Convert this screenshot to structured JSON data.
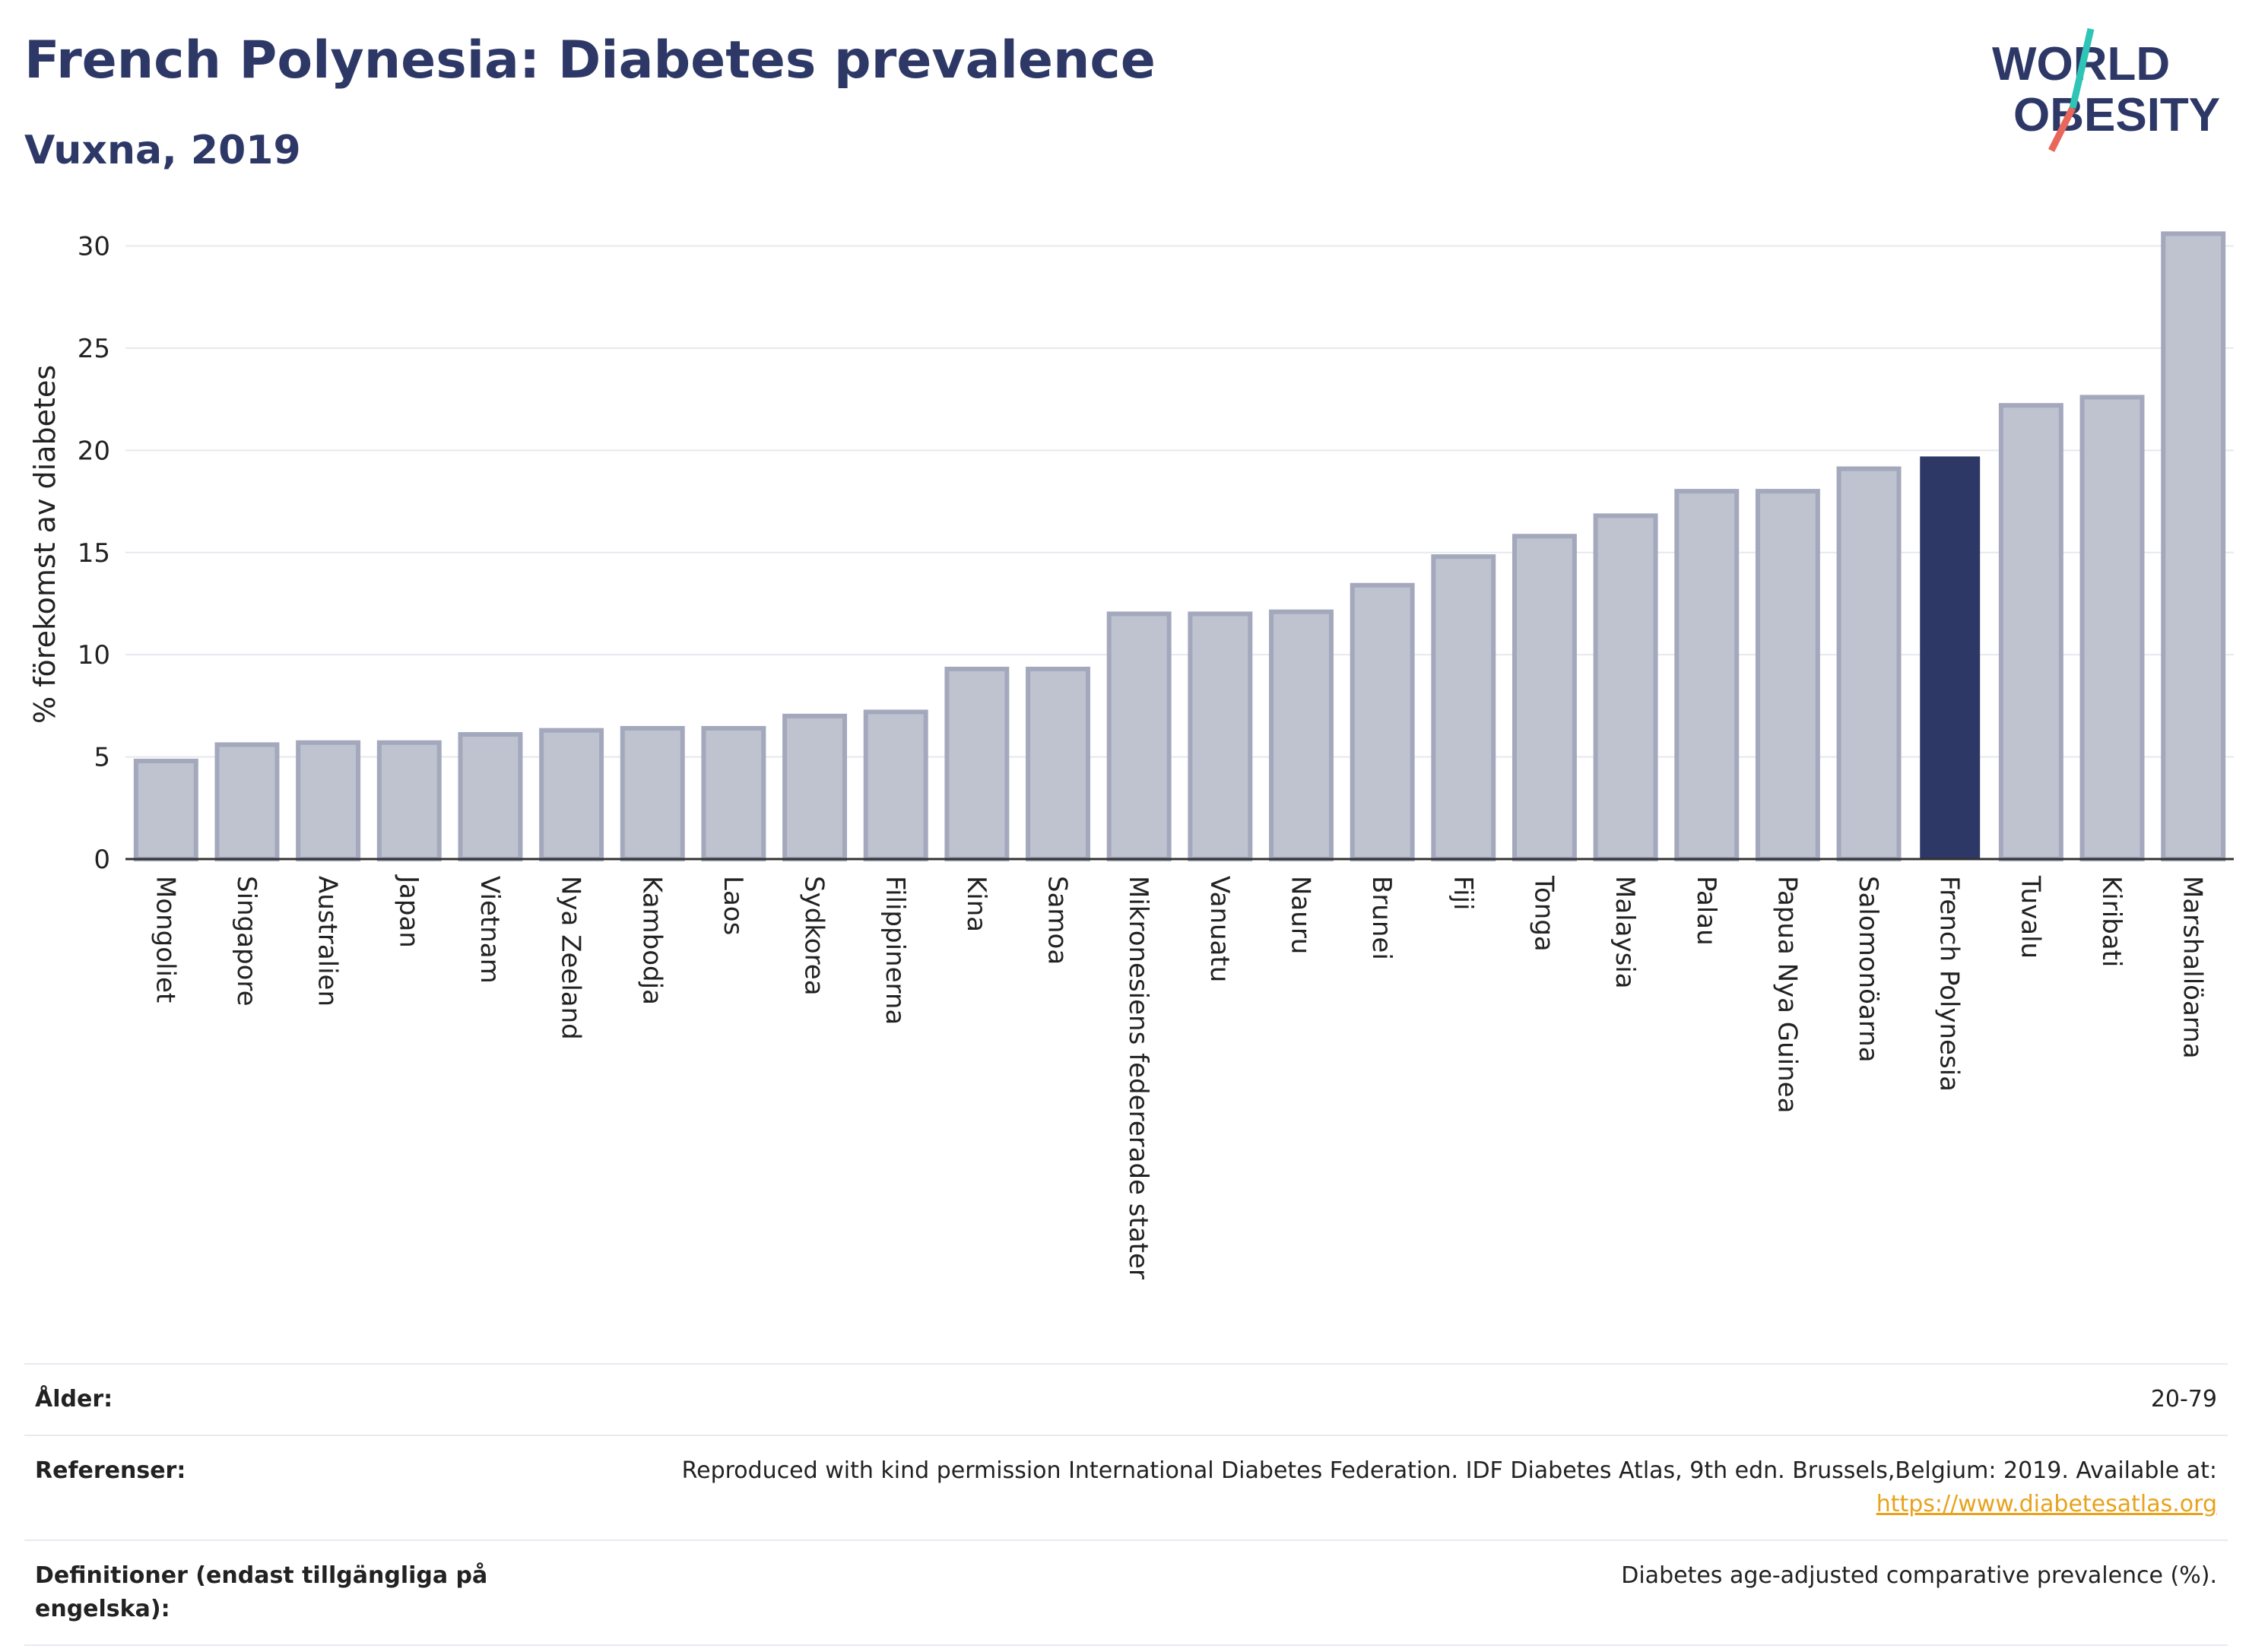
{
  "header": {
    "title": "French Polynesia: Diabetes prevalence",
    "subtitle": "Vuxna, 2019"
  },
  "logo": {
    "line1": "WORLD",
    "line2": "OBESITY",
    "accent_teal": "#2ec4b6",
    "accent_coral": "#e8665a",
    "text_color": "#2d3867"
  },
  "chart_data": {
    "type": "bar",
    "ylabel": "% förekomst av diabetes",
    "xlabel": "",
    "ylim": [
      0,
      30.8
    ],
    "yticks": [
      0,
      5,
      10,
      15,
      20,
      25,
      30
    ],
    "grid": true,
    "highlight": "French Polynesia",
    "colors": {
      "bar": "#bfc2cf",
      "bar_border": "#a3a8bc",
      "highlight": "#2d3867",
      "grid": "#e6e8ee",
      "axis": "#333333"
    },
    "categories": [
      "Mongoliet",
      "Singapore",
      "Australien",
      "Japan",
      "Vietnam",
      "Nya Zeeland",
      "Kambodja",
      "Laos",
      "Sydkorea",
      "Filippinerna",
      "Kina",
      "Samoa",
      "Mikronesiens federerade stater",
      "Vanuatu",
      "Nauru",
      "Brunei",
      "Fiji",
      "Tonga",
      "Malaysia",
      "Palau",
      "Papua Nya Guinea",
      "Salomonöarna",
      "French Polynesia",
      "Tuvalu",
      "Kiribati",
      "Marshallöarna"
    ],
    "values": [
      4.8,
      5.6,
      5.7,
      5.7,
      6.1,
      6.3,
      6.4,
      6.4,
      7.0,
      7.2,
      9.3,
      9.3,
      12.0,
      12.0,
      12.1,
      13.4,
      14.8,
      15.8,
      16.8,
      18.0,
      18.0,
      19.1,
      19.7,
      22.2,
      22.6,
      30.6
    ]
  },
  "meta": {
    "age_label": "Ålder:",
    "age_value": "20-79",
    "ref_label": "Referenser:",
    "ref_text": "Reproduced with kind permission International Diabetes Federation. IDF Diabetes Atlas, 9th edn. Brussels,Belgium: 2019. Available at:",
    "ref_link": "https://www.diabetesatlas.org",
    "def_label": "Definitioner (endast tillgängliga på engelska):",
    "def_value": "Diabetes age-adjusted comparative prevalence (%)."
  }
}
